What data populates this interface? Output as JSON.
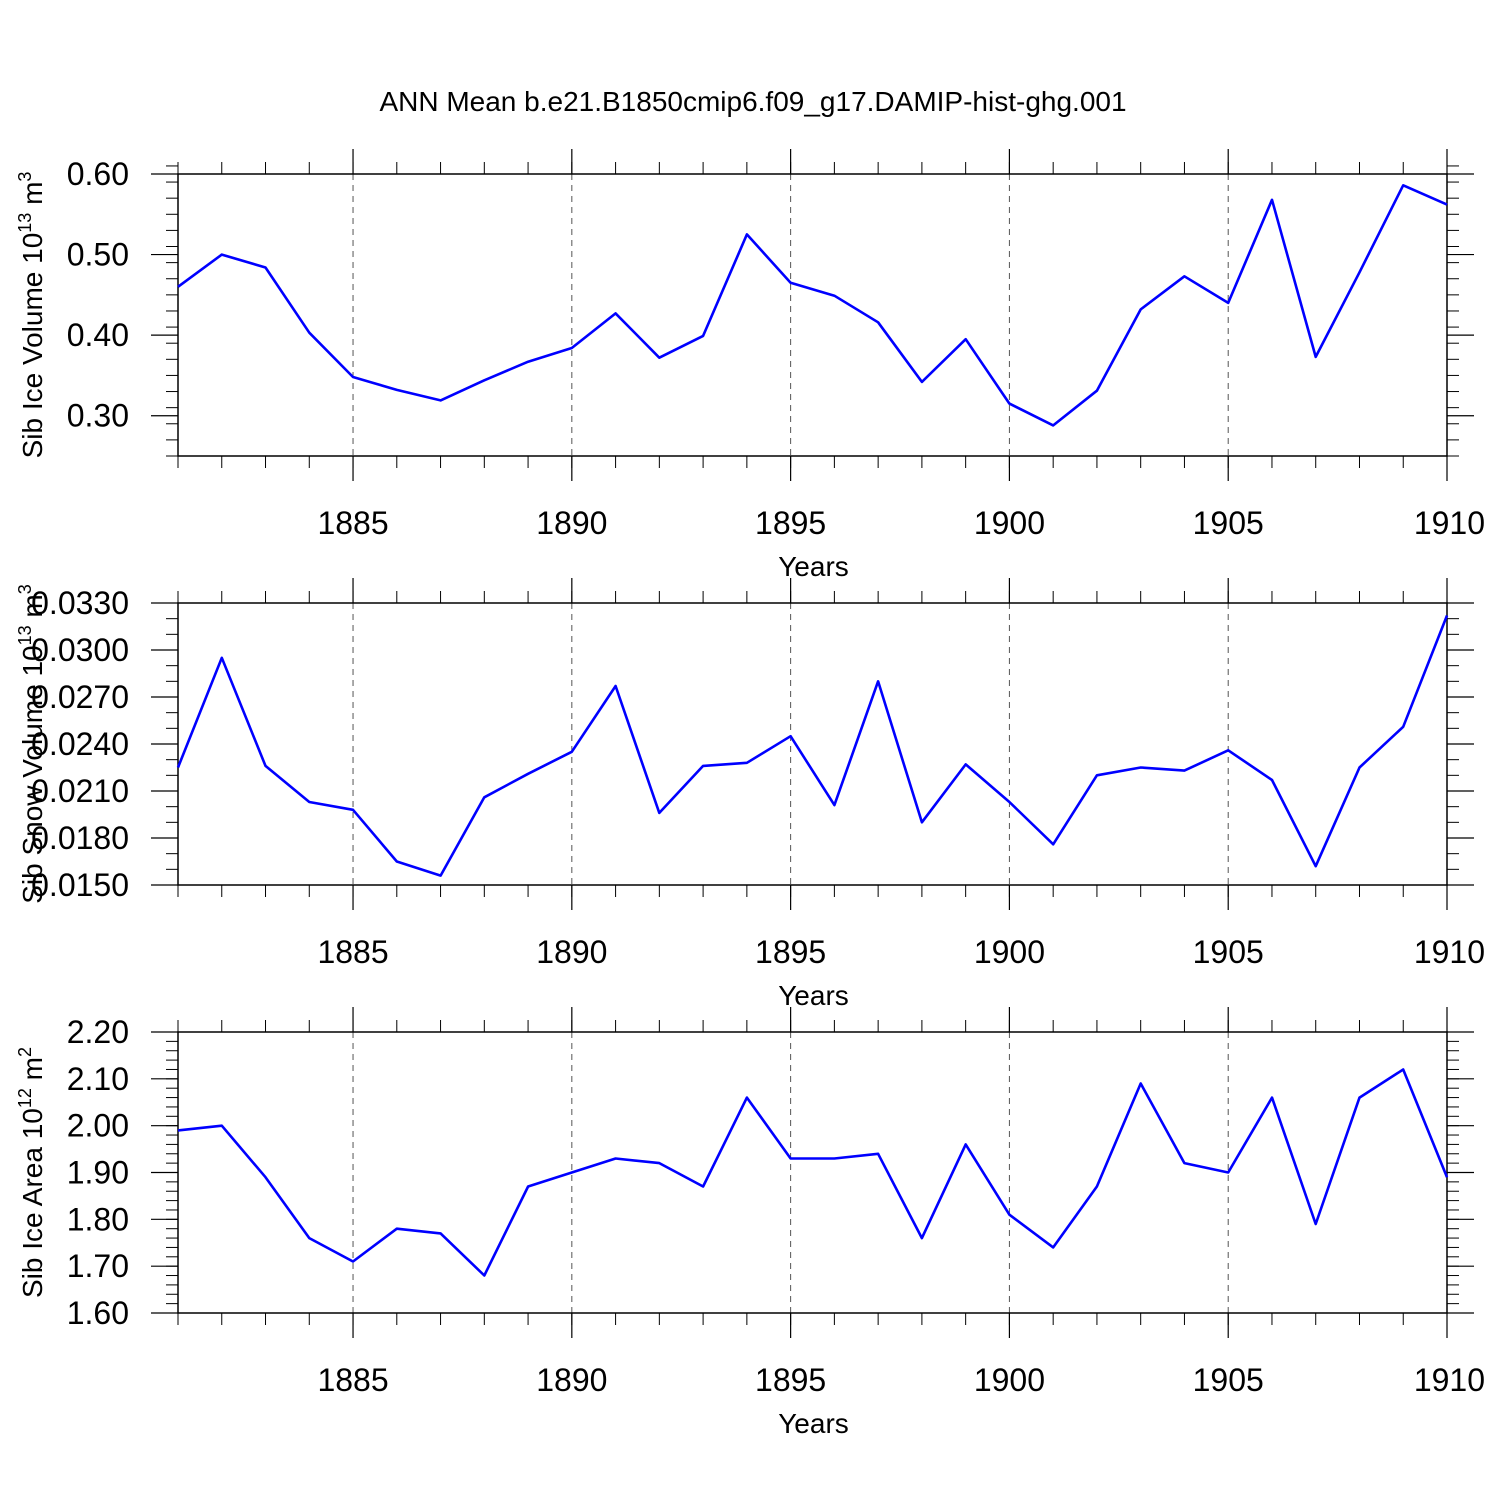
{
  "figure_title": "ANN Mean b.e21.B1850cmip6.f09_g17.DAMIP-hist-ghg.001",
  "colors": {
    "line": "#0000ff",
    "axis": "#000000",
    "grid": "#555555"
  },
  "chart_data": [
    {
      "type": "line",
      "title": "ANN Mean b.e21.B1850cmip6.f09_g17.DAMIP-hist-ghg.001",
      "xlabel": "Years",
      "ylabel": "Sib Ice Volume 10",
      "ylabel_sup": "13",
      "ylabel_unit": " m",
      "ylabel_unit_sup": "3",
      "xlim": [
        1881,
        1910
      ],
      "ylim": [
        0.25,
        0.6
      ],
      "x_ticks": [
        1885,
        1890,
        1895,
        1900,
        1905,
        1910
      ],
      "x_tick_labels": [
        "1885",
        "1890",
        "1895",
        "1900",
        "1905",
        "1910"
      ],
      "y_ticks": [
        0.3,
        0.4,
        0.5,
        0.6
      ],
      "y_tick_labels": [
        "0.30",
        "0.40",
        "0.50",
        "0.60"
      ],
      "y_minor_step": 0.02,
      "grid": "vertical dashed at x ticks",
      "series": [
        {
          "name": "Sib Ice Volume",
          "x": [
            1881,
            1882,
            1883,
            1884,
            1885,
            1886,
            1887,
            1888,
            1889,
            1890,
            1891,
            1892,
            1893,
            1894,
            1895,
            1896,
            1897,
            1898,
            1899,
            1900,
            1901,
            1902,
            1903,
            1904,
            1905,
            1906,
            1907,
            1908,
            1909,
            1910
          ],
          "values": [
            0.46,
            0.5,
            0.484,
            0.403,
            0.348,
            0.332,
            0.319,
            0.344,
            0.367,
            0.384,
            0.427,
            0.372,
            0.399,
            0.525,
            0.465,
            0.449,
            0.416,
            0.342,
            0.395,
            0.315,
            0.288,
            0.331,
            0.432,
            0.473,
            0.44,
            0.568,
            0.373,
            0.478,
            0.586,
            0.562
          ]
        }
      ]
    },
    {
      "type": "line",
      "xlabel": "Years",
      "ylabel": "Sib Snow Volume 10",
      "ylabel_sup": "13",
      "ylabel_unit": " m",
      "ylabel_unit_sup": "3",
      "xlim": [
        1881,
        1910
      ],
      "ylim": [
        0.015,
        0.033
      ],
      "x_ticks": [
        1885,
        1890,
        1895,
        1900,
        1905,
        1910
      ],
      "x_tick_labels": [
        "1885",
        "1890",
        "1895",
        "1900",
        "1905",
        "1910"
      ],
      "y_ticks": [
        0.015,
        0.018,
        0.021,
        0.024,
        0.027,
        0.03,
        0.033
      ],
      "y_tick_labels": [
        "0.0150",
        "0.0180",
        "0.0210",
        "0.0240",
        "0.0270",
        "0.0300",
        "0.0330"
      ],
      "y_minor_step": 0.001,
      "grid": "vertical dashed at x ticks",
      "series": [
        {
          "name": "Sib Snow Volume",
          "x": [
            1881,
            1882,
            1883,
            1884,
            1885,
            1886,
            1887,
            1888,
            1889,
            1890,
            1891,
            1892,
            1893,
            1894,
            1895,
            1896,
            1897,
            1898,
            1899,
            1900,
            1901,
            1902,
            1903,
            1904,
            1905,
            1906,
            1907,
            1908,
            1909,
            1910
          ],
          "values": [
            0.0225,
            0.0295,
            0.0226,
            0.0203,
            0.0198,
            0.0165,
            0.0156,
            0.0206,
            0.0221,
            0.0235,
            0.0277,
            0.0196,
            0.0226,
            0.0228,
            0.0245,
            0.0201,
            0.028,
            0.019,
            0.0227,
            0.0203,
            0.0176,
            0.022,
            0.0225,
            0.0223,
            0.0236,
            0.0217,
            0.0162,
            0.0225,
            0.0251,
            0.0322
          ]
        }
      ]
    },
    {
      "type": "line",
      "xlabel": "Years",
      "ylabel": "Sib Ice Area 10",
      "ylabel_sup": "12",
      "ylabel_unit": " m",
      "ylabel_unit_sup": "2",
      "xlim": [
        1881,
        1910
      ],
      "ylim": [
        1.6,
        2.2
      ],
      "x_ticks": [
        1885,
        1890,
        1895,
        1900,
        1905,
        1910
      ],
      "x_tick_labels": [
        "1885",
        "1890",
        "1895",
        "1900",
        "1905",
        "1910"
      ],
      "y_ticks": [
        1.6,
        1.7,
        1.8,
        1.9,
        2.0,
        2.1,
        2.2
      ],
      "y_tick_labels": [
        "1.60",
        "1.70",
        "1.80",
        "1.90",
        "2.00",
        "2.10",
        "2.20"
      ],
      "y_minor_step": 0.02,
      "grid": "vertical dashed at x ticks",
      "series": [
        {
          "name": "Sib Ice Area",
          "x": [
            1881,
            1882,
            1883,
            1884,
            1885,
            1886,
            1887,
            1888,
            1889,
            1890,
            1891,
            1892,
            1893,
            1894,
            1895,
            1896,
            1897,
            1898,
            1899,
            1900,
            1901,
            1902,
            1903,
            1904,
            1905,
            1906,
            1907,
            1908,
            1909,
            1910
          ],
          "values": [
            1.99,
            2.0,
            1.89,
            1.76,
            1.71,
            1.78,
            1.77,
            1.68,
            1.87,
            1.9,
            1.93,
            1.92,
            1.87,
            2.06,
            1.93,
            1.93,
            1.94,
            1.76,
            1.96,
            1.81,
            1.74,
            1.87,
            2.09,
            1.92,
            1.9,
            2.06,
            1.79,
            2.06,
            2.12,
            1.89
          ]
        }
      ]
    }
  ]
}
